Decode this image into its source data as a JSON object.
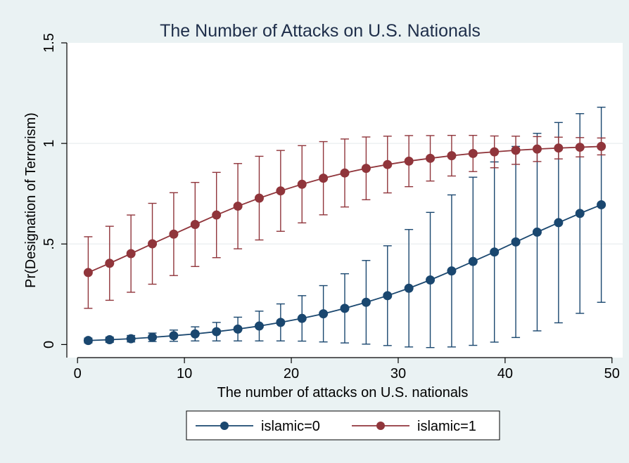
{
  "chart_data": {
    "type": "line",
    "title": "The Number of Attacks on U.S. Nationals",
    "xlabel": "The number of attacks on U.S. nationals",
    "ylabel": "Pr(Designation of Terrorism)",
    "xlim": [
      -1,
      51
    ],
    "ylim": [
      -0.065,
      1.5
    ],
    "xticks": [
      0,
      10,
      20,
      30,
      40,
      50
    ],
    "xtick_labels": [
      "0",
      "10",
      "20",
      "30",
      "40",
      "50"
    ],
    "yticks": [
      0,
      0.5,
      1,
      1.5
    ],
    "ytick_labels": [
      "0",
      ".5",
      "1",
      "1.5"
    ],
    "grid": "horizontal",
    "legend_position": "bottom",
    "x": [
      1,
      3,
      5,
      7,
      9,
      11,
      13,
      15,
      17,
      19,
      21,
      23,
      25,
      27,
      29,
      31,
      33,
      35,
      37,
      39,
      41,
      43,
      45,
      47,
      49
    ],
    "series": [
      {
        "name": "islamic=0",
        "color": "#1a476f",
        "values": [
          0.02,
          0.024,
          0.029,
          0.036,
          0.044,
          0.053,
          0.064,
          0.077,
          0.092,
          0.11,
          0.13,
          0.153,
          0.18,
          0.21,
          0.243,
          0.28,
          0.321,
          0.366,
          0.413,
          0.46,
          0.51,
          0.559,
          0.606,
          0.652,
          0.695
        ],
        "lower": [
          0.008,
          0.011,
          0.013,
          0.015,
          0.016,
          0.018,
          0.018,
          0.018,
          0.018,
          0.018,
          0.017,
          0.013,
          0.008,
          0.002,
          -0.005,
          -0.012,
          -0.015,
          -0.012,
          -0.004,
          0.012,
          0.035,
          0.068,
          0.108,
          0.155,
          0.21
        ],
        "upper": [
          0.032,
          0.037,
          0.045,
          0.057,
          0.072,
          0.088,
          0.11,
          0.136,
          0.166,
          0.202,
          0.243,
          0.293,
          0.352,
          0.418,
          0.491,
          0.572,
          0.657,
          0.744,
          0.832,
          0.908,
          0.985,
          1.05,
          1.104,
          1.148,
          1.18
        ]
      },
      {
        "name": "islamic=1",
        "color": "#90353b",
        "values": [
          0.358,
          0.404,
          0.452,
          0.501,
          0.549,
          0.597,
          0.644,
          0.688,
          0.728,
          0.764,
          0.797,
          0.827,
          0.853,
          0.876,
          0.895,
          0.912,
          0.926,
          0.939,
          0.95,
          0.958,
          0.966,
          0.972,
          0.977,
          0.981,
          0.985
        ],
        "lower": [
          0.18,
          0.22,
          0.26,
          0.3,
          0.343,
          0.388,
          0.432,
          0.476,
          0.52,
          0.563,
          0.605,
          0.645,
          0.684,
          0.72,
          0.754,
          0.785,
          0.813,
          0.838,
          0.86,
          0.879,
          0.896,
          0.91,
          0.923,
          0.933,
          0.943
        ],
        "upper": [
          0.536,
          0.588,
          0.644,
          0.702,
          0.755,
          0.806,
          0.856,
          0.9,
          0.936,
          0.965,
          0.989,
          1.009,
          1.022,
          1.032,
          1.036,
          1.039,
          1.039,
          1.04,
          1.04,
          1.037,
          1.036,
          1.034,
          1.031,
          1.029,
          1.027
        ]
      }
    ]
  }
}
